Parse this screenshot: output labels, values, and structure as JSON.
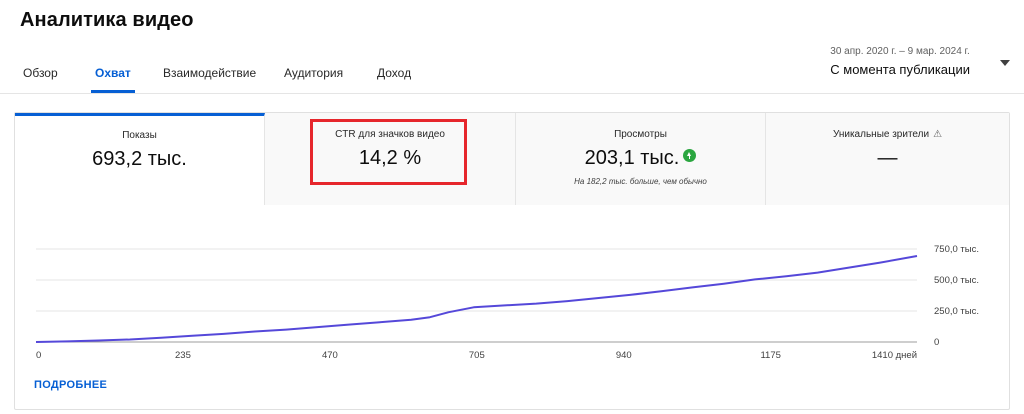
{
  "header": {
    "title": "Аналитика видео"
  },
  "tabs": [
    {
      "label": "Обзор",
      "active": false
    },
    {
      "label": "Охват",
      "active": true
    },
    {
      "label": "Взаимодействие",
      "active": false
    },
    {
      "label": "Аудитория",
      "active": false
    },
    {
      "label": "Доход",
      "active": false
    }
  ],
  "date_range": {
    "dates": "30 апр. 2020 г. – 9 мар. 2024 г.",
    "label": "С момента публикации"
  },
  "metrics": [
    {
      "label": "Показы",
      "value": "693,2 тыс.",
      "active": true
    },
    {
      "label": "CTR для значков видео",
      "value": "14,2 %",
      "highlighted": true
    },
    {
      "label": "Просмотры",
      "value": "203,1 тыс.",
      "note": "На 182,2 тыс. больше, чем обычно",
      "icon": "trending-up-icon"
    },
    {
      "label": "Уникальные зрители",
      "value": "—",
      "icon": "warning-icon"
    }
  ],
  "colors": {
    "accent": "#065fd4",
    "line": "#5548d9",
    "highlight": "#e6262c",
    "positive": "#2ba640"
  },
  "more_link": "ПОДРОБНЕЕ",
  "chart_data": {
    "type": "line",
    "x_unit": "дней",
    "x_tick_labels": [
      "0",
      "235",
      "470",
      "705",
      "940",
      "1175",
      "1410 дней"
    ],
    "y_tick_labels": [
      "0",
      "250,0 тыс.",
      "500,0 тыс.",
      "750,0 тыс."
    ],
    "xlim": [
      0,
      1409
    ],
    "ylim": [
      0,
      750000
    ],
    "grid": true,
    "series": [
      {
        "x": [
          0,
          50,
          100,
          150,
          200,
          250,
          300,
          350,
          400,
          450,
          500,
          550,
          600,
          630,
          660,
          700,
          750,
          800,
          850,
          900,
          950,
          1000,
          1050,
          1100,
          1150,
          1200,
          1250,
          1300,
          1350,
          1409
        ],
        "y": [
          0,
          5000,
          12000,
          20000,
          35000,
          50000,
          65000,
          85000,
          100000,
          120000,
          140000,
          160000,
          180000,
          200000,
          240000,
          280000,
          295000,
          310000,
          330000,
          355000,
          380000,
          410000,
          440000,
          470000,
          505000,
          530000,
          560000,
          600000,
          640000,
          693200
        ]
      }
    ]
  }
}
